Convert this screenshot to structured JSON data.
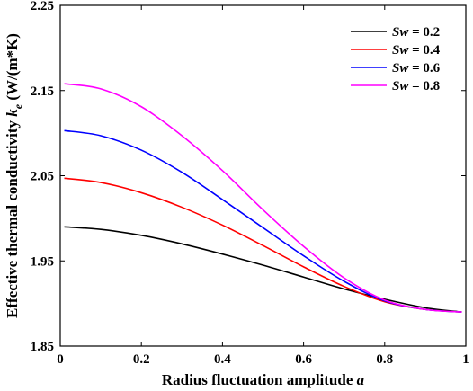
{
  "chart_data": {
    "type": "line",
    "xlabel": "Radius fluctuation amplitude",
    "xlabel_var": "a",
    "ylabel": "Effective thermal conductivity",
    "ylabel_var": "k",
    "ylabel_sub": "e",
    "ylabel_unit": "(W/(m*K)",
    "xlim": [
      0,
      1
    ],
    "ylim": [
      1.85,
      2.25
    ],
    "xticks": [
      0,
      0.2,
      0.4,
      0.6,
      0.8,
      1
    ],
    "xtick_labels": [
      "0",
      "0.2",
      "0.4",
      "0.6",
      "0.8",
      "1"
    ],
    "yticks": [
      1.85,
      1.95,
      2.05,
      2.15,
      2.25
    ],
    "ytick_labels": [
      "1.85",
      "1.95",
      "2.05",
      "2.15",
      "2.25"
    ],
    "grid": false,
    "legend_position": "top-right",
    "series": [
      {
        "name": "Sw = 0.2",
        "name_var": "Sw",
        "name_rest": " = 0.2",
        "color": "#000000",
        "x": [
          0.01,
          0.1,
          0.2,
          0.3,
          0.4,
          0.5,
          0.6,
          0.7,
          0.8,
          0.9,
          0.99
        ],
        "y": [
          1.99,
          1.987,
          1.98,
          1.97,
          1.958,
          1.945,
          1.931,
          1.917,
          1.905,
          1.895,
          1.89
        ]
      },
      {
        "name": "Sw = 0.4",
        "name_var": "Sw",
        "name_rest": " = 0.4",
        "color": "#ff0000",
        "x": [
          0.01,
          0.1,
          0.2,
          0.3,
          0.4,
          0.5,
          0.6,
          0.7,
          0.8,
          0.9,
          0.99
        ],
        "y": [
          2.047,
          2.042,
          2.03,
          2.013,
          1.992,
          1.968,
          1.943,
          1.92,
          1.902,
          1.893,
          1.89
        ]
      },
      {
        "name": "Sw = 0.6",
        "name_var": "Sw",
        "name_rest": " = 0.6",
        "color": "#0000ff",
        "x": [
          0.01,
          0.1,
          0.2,
          0.3,
          0.4,
          0.5,
          0.6,
          0.7,
          0.8,
          0.9,
          0.99
        ],
        "y": [
          2.103,
          2.097,
          2.08,
          2.054,
          2.022,
          1.989,
          1.956,
          1.926,
          1.903,
          1.893,
          1.89
        ]
      },
      {
        "name": "Sw = 0.8",
        "name_var": "Sw",
        "name_rest": " = 0.8",
        "color": "#ff00ff",
        "x": [
          0.01,
          0.1,
          0.2,
          0.3,
          0.4,
          0.5,
          0.6,
          0.7,
          0.8,
          0.9,
          0.99
        ],
        "y": [
          2.158,
          2.152,
          2.131,
          2.097,
          2.056,
          2.01,
          1.967,
          1.93,
          1.904,
          1.893,
          1.89
        ]
      }
    ]
  }
}
